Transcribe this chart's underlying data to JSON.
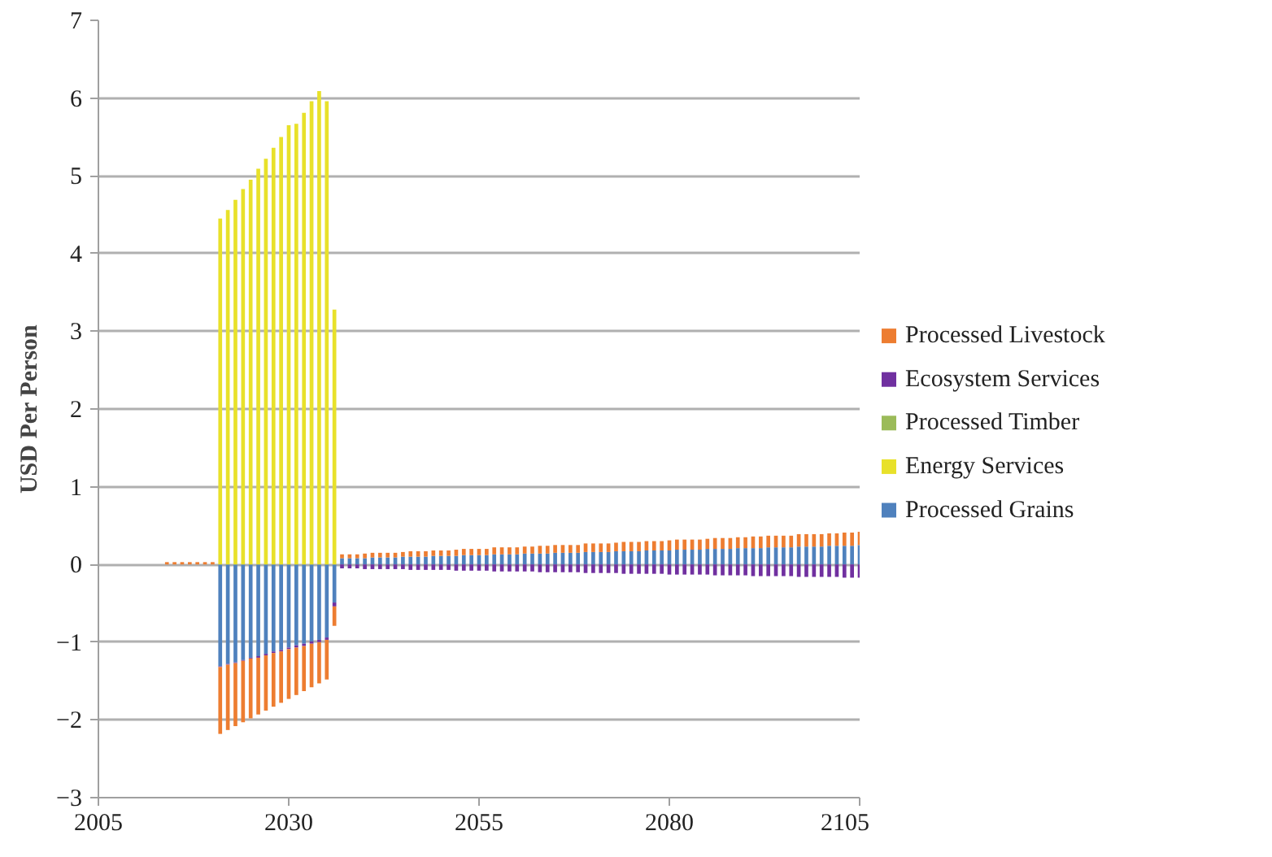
{
  "chart_data": {
    "type": "bar",
    "stacked": true,
    "ylabel": "USD Per Person",
    "x": [
      2006,
      2007,
      2008,
      2009,
      2010,
      2011,
      2012,
      2013,
      2014,
      2015,
      2016,
      2017,
      2018,
      2019,
      2020,
      2021,
      2022,
      2023,
      2024,
      2025,
      2026,
      2027,
      2028,
      2029,
      2030,
      2031,
      2032,
      2033,
      2034,
      2035,
      2036,
      2037,
      2038,
      2039,
      2040,
      2041,
      2042,
      2043,
      2044,
      2045,
      2046,
      2047,
      2048,
      2049,
      2050,
      2051,
      2052,
      2053,
      2054,
      2055,
      2056,
      2057,
      2058,
      2059,
      2060,
      2061,
      2062,
      2063,
      2064,
      2065,
      2066,
      2067,
      2068,
      2069,
      2070,
      2071,
      2072,
      2073,
      2074,
      2075,
      2076,
      2077,
      2078,
      2079,
      2080,
      2081,
      2082,
      2083,
      2084,
      2085,
      2086,
      2087,
      2088,
      2089,
      2090,
      2091,
      2092,
      2093,
      2094,
      2095,
      2096,
      2097,
      2098,
      2099,
      2100,
      2101,
      2102,
      2103,
      2104,
      2105
    ],
    "series": [
      {
        "name": "Processed Grains",
        "color": "#4f81bd",
        "values": [
          0,
          0,
          0,
          0,
          0,
          0,
          0,
          0,
          0,
          0,
          0,
          0,
          0,
          0,
          0,
          -1.31,
          -1.28,
          -1.26,
          -1.23,
          -1.2,
          -1.18,
          -1.15,
          -1.12,
          -1.1,
          -1.07,
          -1.04,
          -1.02,
          -0.99,
          -0.97,
          -0.94,
          -0.49,
          0.08,
          0.08,
          0.08,
          0.08,
          0.09,
          0.09,
          0.09,
          0.09,
          0.1,
          0.1,
          0.1,
          0.1,
          0.11,
          0.11,
          0.11,
          0.11,
          0.12,
          0.12,
          0.12,
          0.12,
          0.13,
          0.13,
          0.13,
          0.13,
          0.14,
          0.14,
          0.14,
          0.14,
          0.15,
          0.15,
          0.15,
          0.15,
          0.16,
          0.16,
          0.16,
          0.16,
          0.17,
          0.17,
          0.17,
          0.17,
          0.18,
          0.18,
          0.18,
          0.18,
          0.19,
          0.19,
          0.19,
          0.19,
          0.2,
          0.2,
          0.2,
          0.2,
          0.21,
          0.21,
          0.21,
          0.21,
          0.22,
          0.22,
          0.22,
          0.22,
          0.23,
          0.23,
          0.23,
          0.23,
          0.24,
          0.24,
          0.24,
          0.24,
          0.25
        ]
      },
      {
        "name": "Energy Services",
        "color": "#e8e12a",
        "values": [
          0,
          0,
          0,
          0,
          0,
          0,
          0,
          0,
          0,
          0,
          0,
          0,
          0,
          0,
          0,
          4.45,
          4.56,
          4.69,
          4.83,
          4.95,
          5.09,
          5.22,
          5.36,
          5.5,
          5.65,
          5.67,
          5.81,
          5.96,
          6.09,
          5.96,
          3.28,
          0,
          0,
          0,
          0,
          0,
          0,
          0,
          0,
          0,
          0,
          0,
          0,
          0,
          0,
          0,
          0,
          0,
          0,
          0,
          0,
          0,
          0,
          0,
          0,
          0,
          0,
          0,
          0,
          0,
          0,
          0,
          0,
          0,
          0,
          0,
          0,
          0,
          0,
          0,
          0,
          0,
          0,
          0,
          0,
          0,
          0,
          0,
          0,
          0,
          0,
          0,
          0,
          0,
          0,
          0,
          0,
          0,
          0,
          0,
          0,
          0,
          0,
          0,
          0,
          0,
          0,
          0,
          0,
          0
        ]
      },
      {
        "name": "Processed Timber",
        "color": "#9bbb59",
        "values": [
          0,
          0,
          0,
          0,
          0,
          0,
          0,
          0,
          0,
          0,
          0,
          0,
          0,
          0,
          0,
          0,
          0,
          0,
          0,
          0,
          0,
          0,
          0,
          0,
          0,
          0,
          0,
          0,
          0,
          0,
          0,
          0,
          0,
          0,
          0,
          0,
          0,
          0,
          0,
          0,
          0,
          0,
          0,
          0,
          0,
          0,
          0,
          0,
          0,
          0,
          0,
          0,
          0,
          0,
          0,
          0,
          0,
          0,
          0,
          0,
          0,
          0,
          0,
          0,
          0,
          0,
          0,
          0,
          0,
          0,
          0,
          0,
          0,
          0,
          0,
          0,
          0,
          0,
          0,
          0,
          0,
          0,
          0,
          0,
          0,
          0,
          0,
          0,
          0,
          0,
          0,
          0,
          0,
          0,
          0,
          0,
          0,
          0,
          0,
          0
        ]
      },
      {
        "name": "Ecosystem Services",
        "color": "#7030a0",
        "values": [
          0,
          0,
          0,
          0,
          0,
          0,
          0,
          0,
          0,
          0,
          0,
          0,
          0,
          0,
          0,
          -0.01,
          -0.01,
          -0.01,
          -0.01,
          -0.01,
          -0.02,
          -0.02,
          -0.02,
          -0.02,
          -0.02,
          -0.03,
          -0.03,
          -0.03,
          -0.03,
          -0.03,
          -0.05,
          -0.05,
          -0.05,
          -0.05,
          -0.06,
          -0.06,
          -0.06,
          -0.06,
          -0.06,
          -0.06,
          -0.07,
          -0.07,
          -0.07,
          -0.07,
          -0.07,
          -0.07,
          -0.08,
          -0.08,
          -0.08,
          -0.08,
          -0.08,
          -0.09,
          -0.09,
          -0.09,
          -0.09,
          -0.09,
          -0.09,
          -0.1,
          -0.1,
          -0.1,
          -0.1,
          -0.1,
          -0.1,
          -0.11,
          -0.11,
          -0.11,
          -0.11,
          -0.11,
          -0.12,
          -0.12,
          -0.12,
          -0.12,
          -0.12,
          -0.12,
          -0.13,
          -0.13,
          -0.13,
          -0.13,
          -0.13,
          -0.13,
          -0.14,
          -0.14,
          -0.14,
          -0.14,
          -0.14,
          -0.15,
          -0.15,
          -0.15,
          -0.15,
          -0.15,
          -0.15,
          -0.16,
          -0.16,
          -0.16,
          -0.16,
          -0.16,
          -0.16,
          -0.17,
          -0.17,
          -0.17
        ]
      },
      {
        "name": "Processed Livestock",
        "color": "#ed7d31",
        "values": [
          0,
          0,
          0,
          0,
          0,
          0,
          0,
          0,
          0.03,
          0.03,
          0.03,
          0.03,
          0.03,
          0.03,
          0.03,
          -0.86,
          -0.84,
          -0.81,
          -0.79,
          -0.77,
          -0.73,
          -0.71,
          -0.69,
          -0.66,
          -0.64,
          -0.61,
          -0.58,
          -0.56,
          -0.53,
          -0.51,
          -0.25,
          0.05,
          0.05,
          0.05,
          0.06,
          0.06,
          0.06,
          0.06,
          0.06,
          0.06,
          0.07,
          0.07,
          0.07,
          0.07,
          0.07,
          0.07,
          0.08,
          0.08,
          0.08,
          0.08,
          0.08,
          0.09,
          0.09,
          0.09,
          0.09,
          0.09,
          0.09,
          0.1,
          0.1,
          0.1,
          0.1,
          0.1,
          0.1,
          0.11,
          0.11,
          0.11,
          0.11,
          0.11,
          0.12,
          0.12,
          0.12,
          0.12,
          0.12,
          0.12,
          0.13,
          0.13,
          0.13,
          0.13,
          0.13,
          0.13,
          0.14,
          0.14,
          0.14,
          0.14,
          0.14,
          0.15,
          0.15,
          0.15,
          0.15,
          0.15,
          0.15,
          0.16,
          0.16,
          0.16,
          0.16,
          0.16,
          0.16,
          0.17,
          0.17,
          0.17
        ]
      }
    ],
    "xlim": [
      2005,
      2105
    ],
    "xticks": [
      2005,
      2030,
      2055,
      2080,
      2105
    ],
    "ylim": [
      -3,
      7
    ],
    "yticks": [
      {
        "value": -3,
        "label": "−3"
      },
      {
        "value": -2,
        "label": "−2"
      },
      {
        "value": -1,
        "label": "−1"
      },
      0,
      1,
      2,
      3,
      4,
      5,
      6,
      7
    ],
    "grid": "y",
    "legend": "right"
  }
}
